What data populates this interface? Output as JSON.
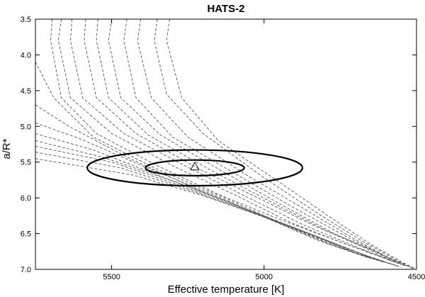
{
  "chart_data": {
    "type": "line",
    "title": "HATS-2",
    "xlabel": "Effective temperature [K]",
    "ylabel": "a/R*",
    "xlim": [
      5750,
      4500
    ],
    "ylim": [
      7.0,
      3.5
    ],
    "x_ticks": [
      "5500",
      "5000",
      "4500"
    ],
    "x_tick_values": [
      5500,
      5000,
      4500
    ],
    "y_ticks": [
      "3.5",
      "4.0",
      "4.5",
      "5.0",
      "5.5",
      "6.0",
      "6.5",
      "7.0"
    ],
    "y_tick_values": [
      3.5,
      4.0,
      4.5,
      5.0,
      5.5,
      6.0,
      6.5,
      7.0
    ],
    "grid": false,
    "colors": {
      "isochrones": "#555555",
      "contours": "#000000",
      "marker": "#000000"
    },
    "series": [
      {
        "style": "dashed",
        "points": [
          [
            5695,
            3.5
          ],
          [
            5700,
            3.8
          ],
          [
            5665,
            4.6
          ],
          [
            5550,
            5.1
          ],
          [
            5350,
            5.55
          ],
          [
            5150,
            5.95
          ],
          [
            4950,
            6.3
          ],
          [
            4760,
            6.6
          ],
          [
            4580,
            6.88
          ]
        ]
      },
      {
        "style": "dashed",
        "points": [
          [
            5665,
            3.5
          ],
          [
            5675,
            3.8
          ],
          [
            5635,
            4.6
          ],
          [
            5500,
            5.1
          ],
          [
            5300,
            5.55
          ],
          [
            5100,
            5.95
          ],
          [
            4910,
            6.35
          ],
          [
            4730,
            6.65
          ],
          [
            4570,
            6.9
          ]
        ]
      },
      {
        "style": "dashed",
        "points": [
          [
            5630,
            3.5
          ],
          [
            5635,
            3.8
          ],
          [
            5595,
            4.6
          ],
          [
            5460,
            5.1
          ],
          [
            5260,
            5.55
          ],
          [
            5060,
            5.98
          ],
          [
            4870,
            6.38
          ],
          [
            4700,
            6.68
          ],
          [
            4560,
            6.92
          ]
        ]
      },
      {
        "style": "dashed",
        "points": [
          [
            5585,
            3.5
          ],
          [
            5590,
            3.8
          ],
          [
            5550,
            4.6
          ],
          [
            5420,
            5.1
          ],
          [
            5220,
            5.58
          ],
          [
            5020,
            6.0
          ],
          [
            4830,
            6.4
          ],
          [
            4670,
            6.7
          ],
          [
            4550,
            6.94
          ]
        ]
      },
      {
        "style": "dashed",
        "points": [
          [
            5545,
            3.5
          ],
          [
            5550,
            3.8
          ],
          [
            5510,
            4.6
          ],
          [
            5380,
            5.12
          ],
          [
            5180,
            5.6
          ],
          [
            4980,
            6.05
          ],
          [
            4800,
            6.45
          ],
          [
            4650,
            6.72
          ],
          [
            4540,
            6.95
          ]
        ]
      },
      {
        "style": "dashed",
        "points": [
          [
            5500,
            3.5
          ],
          [
            5510,
            3.8
          ],
          [
            5470,
            4.6
          ],
          [
            5340,
            5.12
          ],
          [
            5140,
            5.62
          ],
          [
            4950,
            6.08
          ],
          [
            4770,
            6.5
          ],
          [
            4630,
            6.76
          ],
          [
            4530,
            6.96
          ]
        ]
      },
      {
        "style": "dashed",
        "points": [
          [
            5450,
            3.5
          ],
          [
            5460,
            3.8
          ],
          [
            5420,
            4.6
          ],
          [
            5300,
            5.15
          ],
          [
            5100,
            5.65
          ],
          [
            4910,
            6.12
          ],
          [
            4740,
            6.52
          ],
          [
            4610,
            6.8
          ],
          [
            4520,
            6.97
          ]
        ]
      },
      {
        "style": "dashed",
        "points": [
          [
            5405,
            3.5
          ],
          [
            5415,
            3.8
          ],
          [
            5370,
            4.6
          ],
          [
            5250,
            5.15
          ],
          [
            5050,
            5.7
          ],
          [
            4870,
            6.15
          ],
          [
            4710,
            6.56
          ],
          [
            4590,
            6.84
          ],
          [
            4515,
            6.98
          ]
        ]
      },
      {
        "style": "dashed",
        "points": [
          [
            5350,
            3.5
          ],
          [
            5360,
            3.8
          ],
          [
            5320,
            4.55
          ],
          [
            5200,
            5.1
          ],
          [
            5000,
            5.72
          ],
          [
            4830,
            6.2
          ],
          [
            4680,
            6.6
          ],
          [
            4570,
            6.86
          ],
          [
            4510,
            6.99
          ]
        ]
      },
      {
        "style": "dashed",
        "points": [
          [
            5310,
            3.5
          ],
          [
            5320,
            3.8
          ],
          [
            5270,
            4.6
          ],
          [
            5150,
            5.2
          ],
          [
            4950,
            5.78
          ],
          [
            4790,
            6.25
          ],
          [
            4650,
            6.65
          ],
          [
            4555,
            6.88
          ],
          [
            4505,
            6.99
          ]
        ]
      },
      {
        "style": "dashed",
        "points": [
          [
            5750,
            4.1
          ],
          [
            5690,
            4.6
          ],
          [
            5560,
            5.15
          ],
          [
            5350,
            5.6
          ],
          [
            5130,
            6.0
          ],
          [
            4930,
            6.38
          ],
          [
            4750,
            6.68
          ],
          [
            4600,
            6.9
          ]
        ]
      },
      {
        "style": "dashed",
        "points": [
          [
            5750,
            4.7
          ],
          [
            5640,
            5.0
          ],
          [
            5440,
            5.45
          ],
          [
            5220,
            5.88
          ],
          [
            5010,
            6.25
          ],
          [
            4820,
            6.6
          ],
          [
            4650,
            6.85
          ]
        ]
      },
      {
        "style": "dashed",
        "points": [
          [
            5750,
            4.95
          ],
          [
            5600,
            5.18
          ],
          [
            5400,
            5.55
          ],
          [
            5170,
            5.95
          ],
          [
            4970,
            6.32
          ],
          [
            4790,
            6.64
          ],
          [
            4630,
            6.87
          ]
        ]
      },
      {
        "style": "dashed",
        "points": [
          [
            5750,
            5.1
          ],
          [
            5560,
            5.33
          ],
          [
            5350,
            5.68
          ],
          [
            5120,
            6.05
          ],
          [
            4920,
            6.4
          ],
          [
            4750,
            6.7
          ],
          [
            4610,
            6.9
          ]
        ]
      },
      {
        "style": "dashed",
        "points": [
          [
            5750,
            5.2
          ],
          [
            5530,
            5.43
          ],
          [
            5310,
            5.75
          ],
          [
            5080,
            6.12
          ],
          [
            4880,
            6.45
          ],
          [
            4720,
            6.74
          ],
          [
            4590,
            6.92
          ]
        ]
      },
      {
        "style": "dashed",
        "points": [
          [
            5750,
            5.28
          ],
          [
            5500,
            5.5
          ],
          [
            5280,
            5.82
          ],
          [
            5050,
            6.18
          ],
          [
            4850,
            6.5
          ],
          [
            4700,
            6.77
          ],
          [
            4570,
            6.94
          ]
        ]
      },
      {
        "style": "dashed",
        "points": [
          [
            5750,
            5.36
          ],
          [
            5470,
            5.58
          ],
          [
            5240,
            5.9
          ],
          [
            5010,
            6.25
          ],
          [
            4820,
            6.55
          ],
          [
            4670,
            6.8
          ],
          [
            4560,
            6.96
          ]
        ]
      },
      {
        "style": "dashed",
        "points": [
          [
            5750,
            5.45
          ],
          [
            5430,
            5.68
          ],
          [
            5200,
            5.97
          ],
          [
            4980,
            6.3
          ],
          [
            4790,
            6.6
          ],
          [
            4650,
            6.83
          ],
          [
            4550,
            6.97
          ]
        ]
      }
    ],
    "ellipses": [
      {
        "cx": 5227,
        "cy": 5.58,
        "rx": 162,
        "ry": 0.11
      },
      {
        "cx": 5227,
        "cy": 5.58,
        "rx": 353,
        "ry": 0.25
      }
    ],
    "marker": {
      "x": 5227,
      "y": 5.56,
      "shape": "triangle"
    }
  }
}
